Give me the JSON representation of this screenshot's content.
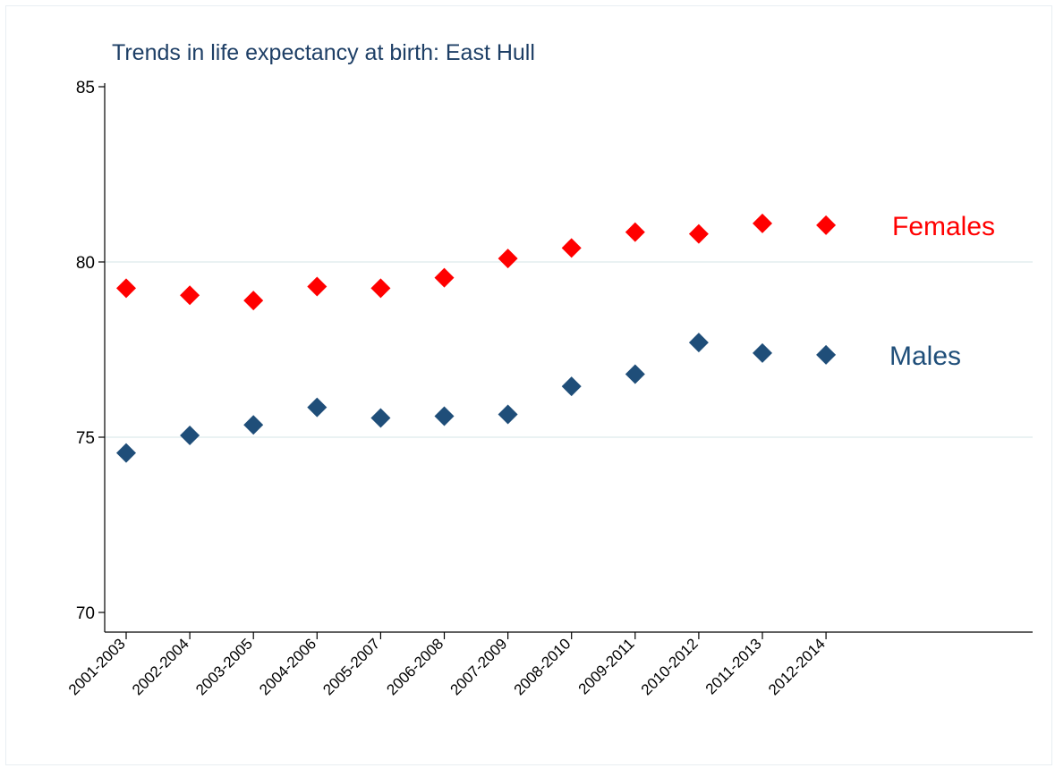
{
  "chart_data": {
    "type": "scatter",
    "title": "Trends in life expectancy at birth: East Hull",
    "xlabel": "",
    "ylabel": "",
    "categories": [
      "2001-2003",
      "2002-2004",
      "2003-2005",
      "2004-2006",
      "2005-2007",
      "2006-2008",
      "2007-2009",
      "2008-2010",
      "2009-2011",
      "2010-2012",
      "2011-2013",
      "2012-2014"
    ],
    "ylim": [
      70,
      85
    ],
    "yticks": [
      "70",
      "75",
      "80",
      "85"
    ],
    "grid": "horizontal",
    "series": [
      {
        "name": "Females",
        "color": "#ff0000",
        "marker": "diamond",
        "values": [
          79.25,
          79.05,
          78.9,
          79.3,
          79.25,
          79.55,
          80.1,
          80.4,
          80.85,
          80.8,
          81.1,
          81.05
        ]
      },
      {
        "name": "Males",
        "color": "#1f4e79",
        "marker": "diamond",
        "values": [
          74.55,
          75.05,
          75.35,
          75.85,
          75.55,
          75.6,
          75.65,
          76.45,
          76.8,
          77.7,
          77.4,
          77.35
        ]
      }
    ]
  }
}
